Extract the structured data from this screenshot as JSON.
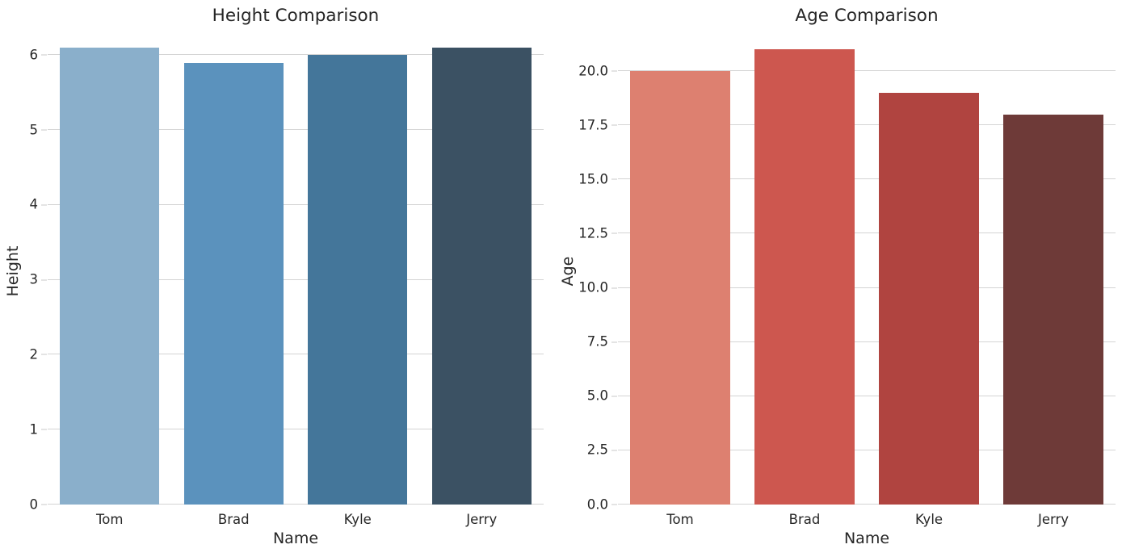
{
  "figure": {
    "background": "#ffffff",
    "text_color": "#262626",
    "grid_color": "#d4d4d4",
    "tick_mark_color": "#c9c9c9"
  },
  "chart_data": [
    {
      "type": "bar",
      "title": "Height Comparison",
      "xlabel": "Name",
      "ylabel": "Height",
      "categories": [
        "Tom",
        "Brad",
        "Kyle",
        "Jerry"
      ],
      "values": [
        6.1,
        5.9,
        6.0,
        6.1
      ],
      "bar_colors": [
        "#8aafcb",
        "#5b92bd",
        "#44769a",
        "#3b5163"
      ],
      "yticks": [
        {
          "label": "0",
          "value": 0
        },
        {
          "label": "1",
          "value": 1
        },
        {
          "label": "2",
          "value": 2
        },
        {
          "label": "3",
          "value": 3
        },
        {
          "label": "4",
          "value": 4
        },
        {
          "label": "5",
          "value": 5
        },
        {
          "label": "6",
          "value": 6
        }
      ],
      "ylim": [
        0,
        6.23
      ],
      "bar_rel_width": 0.8,
      "grid": "horizontal",
      "legend": "none"
    },
    {
      "type": "bar",
      "title": "Age Comparison",
      "xlabel": "Name",
      "ylabel": "Age",
      "categories": [
        "Tom",
        "Brad",
        "Kyle",
        "Jerry"
      ],
      "values": [
        20,
        21,
        19,
        18
      ],
      "bar_colors": [
        "#dd8070",
        "#cd574f",
        "#b04440",
        "#6e3a38"
      ],
      "yticks": [
        {
          "label": "0.0",
          "value": 0
        },
        {
          "label": "2.5",
          "value": 2.5
        },
        {
          "label": "5.0",
          "value": 5
        },
        {
          "label": "7.5",
          "value": 7.5
        },
        {
          "label": "10.0",
          "value": 10
        },
        {
          "label": "12.5",
          "value": 12.5
        },
        {
          "label": "15.0",
          "value": 15
        },
        {
          "label": "17.5",
          "value": 17.5
        },
        {
          "label": "20.0",
          "value": 20
        }
      ],
      "ylim": [
        0,
        21.53
      ],
      "bar_rel_width": 0.8,
      "grid": "horizontal",
      "legend": "none"
    }
  ]
}
